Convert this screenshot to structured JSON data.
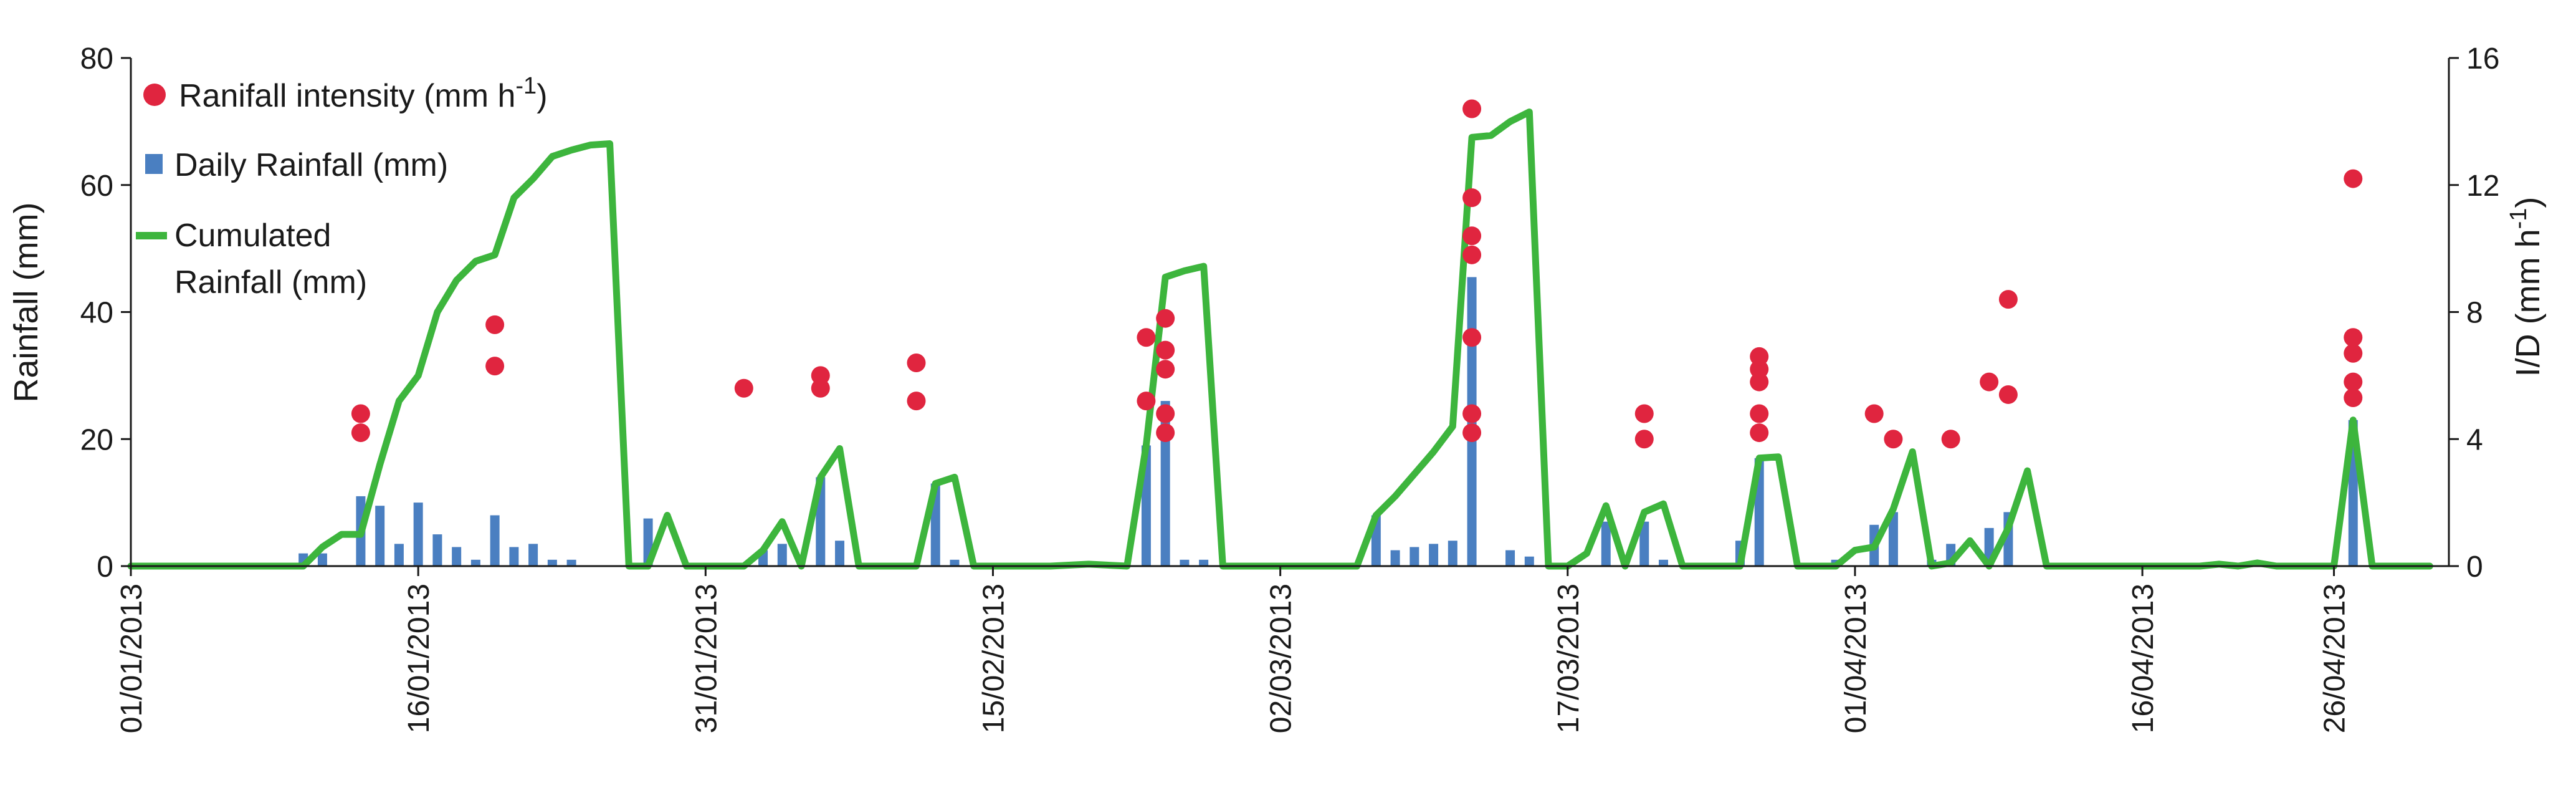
{
  "chart_data": {
    "type": "bar+line+scatter",
    "xlabel": "",
    "ylabel": "Rainfall (mm)",
    "y2label": "I/D (mm h-1)",
    "ylim": [
      0,
      80
    ],
    "y2lim": [
      0,
      16
    ],
    "yticks": [
      "0",
      "20",
      "40",
      "60",
      "80"
    ],
    "y2ticks": [
      "0",
      "4",
      "8",
      "12",
      "16"
    ],
    "x_range": [
      "2013-01-01",
      "2013-05-02"
    ],
    "x_tick_labels": [
      "01/01/2013",
      "16/01/2013",
      "31/01/2013",
      "15/02/2013",
      "02/03/2013",
      "17/03/2013",
      "01/04/2013",
      "16/04/2013",
      "26/04/2013"
    ],
    "x_tick_dates": [
      "2013-01-01",
      "2013-01-16",
      "2013-01-31",
      "2013-02-15",
      "2013-03-02",
      "2013-03-17",
      "2013-04-01",
      "2013-04-16",
      "2013-04-26"
    ],
    "legend": {
      "position": "top-left",
      "entries": [
        {
          "label": "Ranifall intensity (mm h",
          "sup": "-1",
          "tail": ")"
        },
        {
          "label": "Daily Rainfall (mm)"
        },
        {
          "label_lines": [
            "Cumulated",
            "Rainfall (mm)"
          ]
        }
      ]
    },
    "series": [
      {
        "name": "Daily Rainfall (mm)",
        "kind": "bar",
        "axis": "left",
        "color": "#4a7fc1",
        "points": [
          [
            "2013-01-10",
            2.0
          ],
          [
            "2013-01-11",
            2.0
          ],
          [
            "2013-01-13",
            11.0
          ],
          [
            "2013-01-14",
            9.5
          ],
          [
            "2013-01-15",
            3.5
          ],
          [
            "2013-01-16",
            10.0
          ],
          [
            "2013-01-17",
            5.0
          ],
          [
            "2013-01-18",
            3.0
          ],
          [
            "2013-01-19",
            1.0
          ],
          [
            "2013-01-20",
            8.0
          ],
          [
            "2013-01-21",
            3.0
          ],
          [
            "2013-01-22",
            3.5
          ],
          [
            "2013-01-23",
            1.0
          ],
          [
            "2013-01-24",
            1.0
          ],
          [
            "2013-01-28",
            7.5
          ],
          [
            "2013-02-03",
            2.5
          ],
          [
            "2013-02-04",
            3.5
          ],
          [
            "2013-02-06",
            14.0
          ],
          [
            "2013-02-07",
            4.0
          ],
          [
            "2013-02-12",
            13.0
          ],
          [
            "2013-02-13",
            1.0
          ],
          [
            "2013-02-23",
            19.0
          ],
          [
            "2013-02-24",
            26.0
          ],
          [
            "2013-02-25",
            1.0
          ],
          [
            "2013-02-26",
            1.0
          ],
          [
            "2013-03-07",
            8.0
          ],
          [
            "2013-03-08",
            2.5
          ],
          [
            "2013-03-09",
            3.0
          ],
          [
            "2013-03-10",
            3.5
          ],
          [
            "2013-03-11",
            4.0
          ],
          [
            "2013-03-12",
            45.5
          ],
          [
            "2013-03-14",
            2.5
          ],
          [
            "2013-03-15",
            1.5
          ],
          [
            "2013-03-19",
            7.0
          ],
          [
            "2013-03-21",
            7.0
          ],
          [
            "2013-03-22",
            1.0
          ],
          [
            "2013-03-26",
            4.0
          ],
          [
            "2013-03-27",
            17.0
          ],
          [
            "2013-03-31",
            1.0
          ],
          [
            "2013-04-02",
            6.5
          ],
          [
            "2013-04-03",
            8.5
          ],
          [
            "2013-04-05",
            1.0
          ],
          [
            "2013-04-06",
            3.5
          ],
          [
            "2013-04-08",
            6.0
          ],
          [
            "2013-04-09",
            8.5
          ],
          [
            "2013-04-27",
            23.0
          ]
        ]
      },
      {
        "name": "Cumulated Rainfall (mm)",
        "kind": "line",
        "axis": "left",
        "color": "#3db53d",
        "points": [
          [
            "2013-01-01",
            0
          ],
          [
            "2013-01-10",
            0
          ],
          [
            "2013-01-11",
            3
          ],
          [
            "2013-01-12",
            5
          ],
          [
            "2013-01-13",
            5
          ],
          [
            "2013-01-14",
            16
          ],
          [
            "2013-01-15",
            26
          ],
          [
            "2013-01-16",
            30
          ],
          [
            "2013-01-17",
            40
          ],
          [
            "2013-01-18",
            45
          ],
          [
            "2013-01-19",
            48
          ],
          [
            "2013-01-20",
            49
          ],
          [
            "2013-01-21",
            58
          ],
          [
            "2013-01-22",
            61
          ],
          [
            "2013-01-23",
            64.5
          ],
          [
            "2013-01-24",
            65.5
          ],
          [
            "2013-01-25",
            66.3
          ],
          [
            "2013-01-26",
            66.5
          ],
          [
            "2013-01-27",
            0
          ],
          [
            "2013-01-28",
            0
          ],
          [
            "2013-01-29",
            8
          ],
          [
            "2013-01-30",
            0
          ],
          [
            "2013-02-02",
            0
          ],
          [
            "2013-02-03",
            2.5
          ],
          [
            "2013-02-04",
            7
          ],
          [
            "2013-02-05",
            0
          ],
          [
            "2013-02-06",
            14
          ],
          [
            "2013-02-07",
            18.5
          ],
          [
            "2013-02-08",
            0
          ],
          [
            "2013-02-11",
            0
          ],
          [
            "2013-02-12",
            13
          ],
          [
            "2013-02-13",
            14
          ],
          [
            "2013-02-14",
            0
          ],
          [
            "2013-02-18",
            0
          ],
          [
            "2013-02-20",
            0.3
          ],
          [
            "2013-02-22",
            0
          ],
          [
            "2013-02-23",
            19
          ],
          [
            "2013-02-24",
            45.5
          ],
          [
            "2013-02-25",
            46.5
          ],
          [
            "2013-02-26",
            47.2
          ],
          [
            "2013-02-27",
            0
          ],
          [
            "2013-03-06",
            0
          ],
          [
            "2013-03-07",
            8
          ],
          [
            "2013-03-08",
            11
          ],
          [
            "2013-03-09",
            14.5
          ],
          [
            "2013-03-10",
            18
          ],
          [
            "2013-03-11",
            22
          ],
          [
            "2013-03-12",
            67.5
          ],
          [
            "2013-03-13",
            67.8
          ],
          [
            "2013-03-14",
            70
          ],
          [
            "2013-03-15",
            71.5
          ],
          [
            "2013-03-16",
            0
          ],
          [
            "2013-03-17",
            0
          ],
          [
            "2013-03-18",
            2
          ],
          [
            "2013-03-19",
            9.5
          ],
          [
            "2013-03-20",
            0
          ],
          [
            "2013-03-21",
            8.5
          ],
          [
            "2013-03-22",
            9.8
          ],
          [
            "2013-03-23",
            0
          ],
          [
            "2013-03-26",
            0
          ],
          [
            "2013-03-27",
            17
          ],
          [
            "2013-03-28",
            17.2
          ],
          [
            "2013-03-29",
            0
          ],
          [
            "2013-03-31",
            0
          ],
          [
            "2013-04-01",
            2.5
          ],
          [
            "2013-04-02",
            3
          ],
          [
            "2013-04-03",
            9
          ],
          [
            "2013-04-04",
            18
          ],
          [
            "2013-04-05",
            0
          ],
          [
            "2013-04-06",
            0.5
          ],
          [
            "2013-04-07",
            4
          ],
          [
            "2013-04-08",
            0
          ],
          [
            "2013-04-09",
            6
          ],
          [
            "2013-04-10",
            15
          ],
          [
            "2013-04-11",
            0
          ],
          [
            "2013-04-19",
            0
          ],
          [
            "2013-04-20",
            0.3
          ],
          [
            "2013-04-21",
            0
          ],
          [
            "2013-04-22",
            0.5
          ],
          [
            "2013-04-23",
            0
          ],
          [
            "2013-04-26",
            0
          ],
          [
            "2013-04-27",
            23
          ],
          [
            "2013-04-28",
            0
          ],
          [
            "2013-05-01",
            0
          ]
        ]
      },
      {
        "name": "Ranifall intensity (mm h-1)",
        "kind": "scatter",
        "axis": "right",
        "color": "#e0253f",
        "points": [
          [
            "2013-01-13",
            4.2
          ],
          [
            "2013-01-13",
            4.8
          ],
          [
            "2013-01-20",
            6.3
          ],
          [
            "2013-01-20",
            7.6
          ],
          [
            "2013-02-02",
            5.6
          ],
          [
            "2013-02-06",
            5.6
          ],
          [
            "2013-02-06",
            6.0
          ],
          [
            "2013-02-11",
            5.2
          ],
          [
            "2013-02-11",
            6.4
          ],
          [
            "2013-02-23",
            5.2
          ],
          [
            "2013-02-23",
            7.2
          ],
          [
            "2013-02-24",
            4.2
          ],
          [
            "2013-02-24",
            4.8
          ],
          [
            "2013-02-24",
            6.2
          ],
          [
            "2013-02-24",
            6.8
          ],
          [
            "2013-02-24",
            7.8
          ],
          [
            "2013-03-12",
            4.2
          ],
          [
            "2013-03-12",
            4.8
          ],
          [
            "2013-03-12",
            7.2
          ],
          [
            "2013-03-12",
            9.8
          ],
          [
            "2013-03-12",
            10.4
          ],
          [
            "2013-03-12",
            11.6
          ],
          [
            "2013-03-12",
            14.4
          ],
          [
            "2013-03-21",
            4.0
          ],
          [
            "2013-03-21",
            4.8
          ],
          [
            "2013-03-27",
            4.2
          ],
          [
            "2013-03-27",
            4.8
          ],
          [
            "2013-03-27",
            5.8
          ],
          [
            "2013-03-27",
            6.2
          ],
          [
            "2013-03-27",
            6.6
          ],
          [
            "2013-04-02",
            4.8
          ],
          [
            "2013-04-03",
            4.0
          ],
          [
            "2013-04-06",
            4.0
          ],
          [
            "2013-04-08",
            5.8
          ],
          [
            "2013-04-09",
            5.4
          ],
          [
            "2013-04-09",
            8.4
          ],
          [
            "2013-04-27",
            5.3
          ],
          [
            "2013-04-27",
            5.8
          ],
          [
            "2013-04-27",
            6.7
          ],
          [
            "2013-04-27",
            7.2
          ],
          [
            "2013-04-27",
            12.2
          ]
        ]
      }
    ]
  }
}
